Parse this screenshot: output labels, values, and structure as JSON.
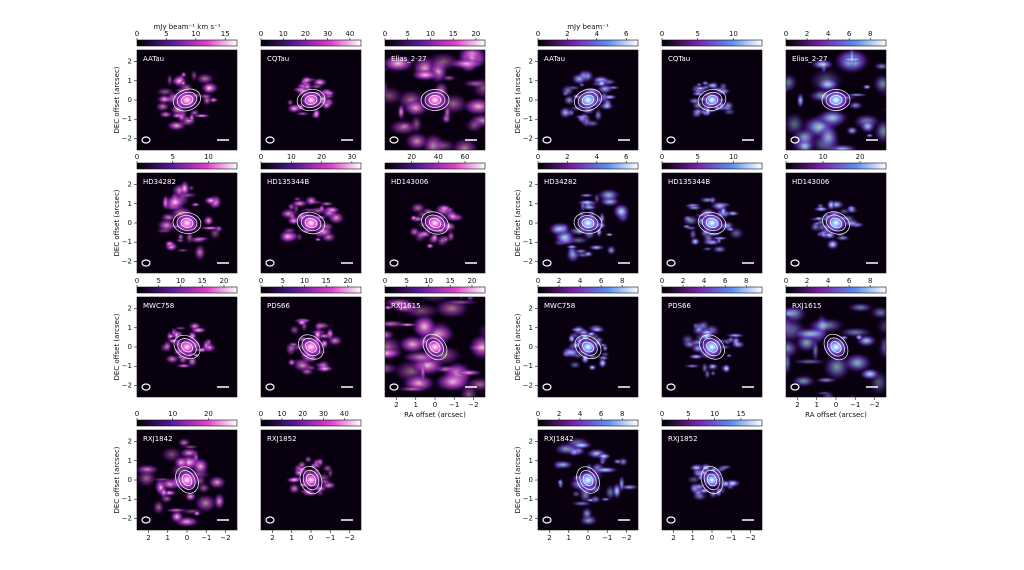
{
  "axis": {
    "lim": [
      -2.6,
      2.6
    ],
    "ticks": [
      2,
      1,
      0,
      {
        "value": -1,
        "label": "−1"
      },
      {
        "value": -2,
        "label": "−2"
      }
    ]
  },
  "figures": [
    {
      "colorbar_label": "mJy beam⁻¹ km s⁻¹",
      "y_label": "DEC offset (arcsec)",
      "x_label": "RA offset (arcsec)",
      "panels": [
        {
          "name": "AATau",
          "cbar_lim": [
            0,
            17
          ],
          "cbar_ticks": [
            0,
            5,
            10,
            15
          ]
        },
        {
          "name": "CQTau",
          "cbar_lim": [
            0,
            45
          ],
          "cbar_ticks": [
            0,
            10,
            20,
            30,
            40
          ]
        },
        {
          "name": "Elias_2-27",
          "cbar_lim": [
            0,
            22
          ],
          "cbar_ticks": [
            0,
            5,
            10,
            15,
            20
          ]
        },
        {
          "name": "HD34282",
          "cbar_lim": [
            0,
            14
          ],
          "cbar_ticks": [
            0,
            5,
            10
          ]
        },
        {
          "name": "HD135344B",
          "cbar_lim": [
            0,
            33
          ],
          "cbar_ticks": [
            0,
            10,
            20,
            30
          ]
        },
        {
          "name": "HD143006",
          "cbar_lim": [
            0,
            75
          ],
          "cbar_ticks": [
            20,
            40,
            60
          ]
        },
        {
          "name": "MWC758",
          "cbar_lim": [
            0,
            23
          ],
          "cbar_ticks": [
            0,
            5,
            10,
            15,
            20
          ]
        },
        {
          "name": "PDS66",
          "cbar_lim": [
            0,
            23
          ],
          "cbar_ticks": [
            0,
            5,
            10,
            15,
            20
          ]
        },
        {
          "name": "RXJ1615",
          "cbar_lim": [
            0,
            23
          ],
          "cbar_ticks": [
            0,
            5,
            10,
            15,
            20
          ]
        },
        {
          "name": "RXJ1842",
          "cbar_lim": [
            0,
            28
          ],
          "cbar_ticks": [
            0,
            10,
            20
          ]
        },
        {
          "name": "RXJ1852",
          "cbar_lim": [
            0,
            48
          ],
          "cbar_ticks": [
            0,
            10,
            20,
            30,
            40
          ]
        }
      ]
    },
    {
      "colorbar_label": "mJy beam⁻¹",
      "y_label": "DEC offset (arcsec)",
      "x_label": "RA offset (arcsec)",
      "panels": [
        {
          "name": "AATau",
          "cbar_lim": [
            0,
            6.8
          ],
          "cbar_ticks": [
            0,
            2,
            4,
            6
          ]
        },
        {
          "name": "CQTau",
          "cbar_lim": [
            0,
            14
          ],
          "cbar_ticks": [
            0,
            5,
            10
          ]
        },
        {
          "name": "Elias_2-27",
          "cbar_lim": [
            0,
            9.5
          ],
          "cbar_ticks": [
            0,
            2,
            4,
            6,
            8
          ]
        },
        {
          "name": "HD34282",
          "cbar_lim": [
            0,
            6.8
          ],
          "cbar_ticks": [
            0,
            2,
            4,
            6
          ]
        },
        {
          "name": "HD135344B",
          "cbar_lim": [
            0,
            14
          ],
          "cbar_ticks": [
            0,
            5,
            10
          ]
        },
        {
          "name": "HD143006",
          "cbar_lim": [
            0,
            27
          ],
          "cbar_ticks": [
            0,
            10,
            20
          ]
        },
        {
          "name": "MWC758",
          "cbar_lim": [
            0,
            9.5
          ],
          "cbar_ticks": [
            0,
            2,
            4,
            6,
            8
          ]
        },
        {
          "name": "PDS66",
          "cbar_lim": [
            0,
            9.5
          ],
          "cbar_ticks": [
            0,
            2,
            4,
            6,
            8
          ]
        },
        {
          "name": "RXJ1615",
          "cbar_lim": [
            0,
            9.5
          ],
          "cbar_ticks": [
            0,
            2,
            4,
            6,
            8
          ]
        },
        {
          "name": "RXJ1842",
          "cbar_lim": [
            0,
            9.5
          ],
          "cbar_ticks": [
            0,
            2,
            4,
            6,
            8
          ]
        },
        {
          "name": "RXJ1852",
          "cbar_lim": [
            0,
            19
          ],
          "cbar_ticks": [
            0,
            5,
            10,
            15
          ]
        }
      ]
    }
  ]
}
